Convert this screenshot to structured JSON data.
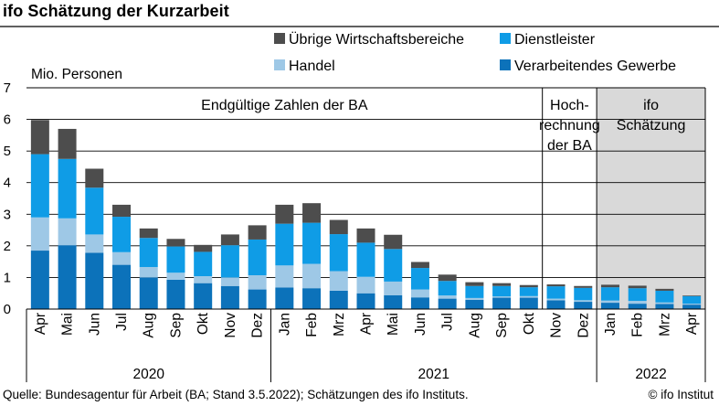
{
  "title": "ifo Schätzung der Kurzarbeit",
  "source": "Quelle: Bundesagentur für Arbeit (BA; Stand 3.5.2022); Schätzungen des ifo Instituts.",
  "copyright": "© ifo Institut",
  "colors": {
    "verarbeitendes": "#0c72ba",
    "handel": "#9ec8e6",
    "dienstleister": "#0f9ce6",
    "uebrige": "#4d4d4d",
    "shade": "#d9d9d9"
  },
  "chart_data": {
    "type": "bar",
    "stacked": true,
    "ylabel": "Mio. Personen",
    "ylim": [
      0,
      7
    ],
    "yticks": [
      0,
      1,
      2,
      3,
      4,
      5,
      6,
      7
    ],
    "grid": true,
    "legend_position": "top-right",
    "categories": [
      "Apr",
      "Mai",
      "Jun",
      "Jul",
      "Aug",
      "Sep",
      "Okt",
      "Nov",
      "Dez",
      "Jan",
      "Feb",
      "Mrz",
      "Apr",
      "Mai",
      "Jun",
      "Jul",
      "Aug",
      "Sep",
      "Okt",
      "Nov",
      "Dez",
      "Jan",
      "Feb",
      "Mrz",
      "Apr"
    ],
    "years": [
      {
        "label": "2020",
        "start": 0,
        "end": 8
      },
      {
        "label": "2021",
        "start": 9,
        "end": 20
      },
      {
        "label": "2022",
        "start": 21,
        "end": 24
      }
    ],
    "regions": [
      {
        "label_lines": [
          "Endgültige Zahlen der BA"
        ],
        "start": 0,
        "end": 18,
        "shaded": false
      },
      {
        "label_lines": [
          "Hoch-",
          "rechnung",
          "der BA"
        ],
        "start": 19,
        "end": 20,
        "shaded": false
      },
      {
        "label_lines": [
          "ifo",
          "Schätzung"
        ],
        "start": 21,
        "end": 24,
        "shaded": true
      }
    ],
    "series": [
      {
        "name": "Verarbeitendes Gewerbe",
        "color_key": "verarbeitendes",
        "values": [
          1.85,
          2.02,
          1.78,
          1.4,
          1.0,
          0.93,
          0.82,
          0.73,
          0.62,
          0.68,
          0.66,
          0.58,
          0.5,
          0.44,
          0.37,
          0.33,
          0.29,
          0.36,
          0.36,
          0.28,
          0.23,
          0.2,
          0.17,
          0.16,
          0.14
        ]
      },
      {
        "name": "Handel",
        "color_key": "handel",
        "values": [
          1.05,
          0.85,
          0.58,
          0.4,
          0.33,
          0.22,
          0.22,
          0.27,
          0.45,
          0.7,
          0.77,
          0.62,
          0.52,
          0.43,
          0.25,
          0.1,
          0.06,
          0.04,
          0.05,
          0.05,
          0.05,
          0.07,
          0.09,
          0.05,
          0.03
        ]
      },
      {
        "name": "Dienstleister",
        "color_key": "dienstleister",
        "values": [
          2.0,
          1.88,
          1.48,
          1.12,
          0.92,
          0.83,
          0.77,
          1.02,
          1.13,
          1.32,
          1.3,
          1.17,
          1.08,
          1.03,
          0.68,
          0.46,
          0.38,
          0.33,
          0.28,
          0.39,
          0.39,
          0.42,
          0.4,
          0.37,
          0.24
        ]
      },
      {
        "name": "Übrige Wirtschaftsbereiche",
        "color_key": "uebrige",
        "values": [
          1.08,
          0.95,
          0.6,
          0.38,
          0.3,
          0.24,
          0.22,
          0.34,
          0.45,
          0.6,
          0.62,
          0.45,
          0.45,
          0.45,
          0.19,
          0.2,
          0.12,
          0.09,
          0.07,
          0.06,
          0.06,
          0.08,
          0.08,
          0.06,
          0.02
        ]
      }
    ],
    "legend_order": [
      "Übrige Wirtschaftsbereiche",
      "Dienstleister",
      "Handel",
      "Verarbeitendes Gewerbe"
    ]
  }
}
